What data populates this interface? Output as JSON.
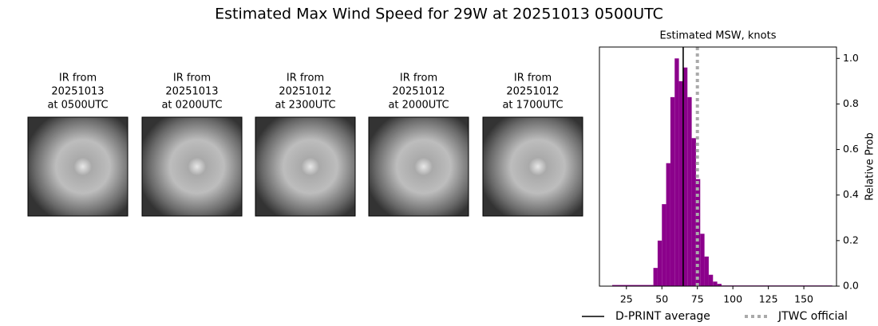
{
  "title": "Estimated Max Wind Speed for 29W at 20251013 0500UTC",
  "images": [
    {
      "lines": [
        "IR from",
        "20251013",
        "at 0500UTC"
      ]
    },
    {
      "lines": [
        "IR from",
        "20251013",
        "at 0200UTC"
      ]
    },
    {
      "lines": [
        "IR from",
        "20251012",
        "at 2300UTC"
      ]
    },
    {
      "lines": [
        "IR from",
        "20251012",
        "at 2000UTC"
      ]
    },
    {
      "lines": [
        "IR from",
        "20251012",
        "at 1700UTC"
      ]
    }
  ],
  "chart_data": {
    "type": "histogram",
    "title": "Estimated MSW, knots",
    "y_label": "Relative Prob",
    "color": "#8b008b",
    "bins": [
      15,
      44,
      47,
      50,
      53,
      56,
      59,
      62,
      65,
      68,
      71,
      74,
      77,
      80,
      83,
      86,
      89,
      92,
      170
    ],
    "counts": [
      0.005,
      0.08,
      0.2,
      0.36,
      0.54,
      0.83,
      1.0,
      0.9,
      0.96,
      0.83,
      0.65,
      0.47,
      0.23,
      0.13,
      0.05,
      0.02,
      0.01,
      0.003
    ],
    "xlim": [
      6,
      173
    ],
    "ylim": [
      0,
      1.05
    ],
    "xticks": [
      25,
      50,
      75,
      100,
      125,
      150
    ],
    "yticks": [
      {
        "value": 0,
        "label": "0.0"
      },
      0.2,
      0.4,
      0.6,
      0.8,
      {
        "value": 1,
        "label": "1.0"
      }
    ],
    "lines": [
      {
        "name": "D-PRINT average",
        "value": 65,
        "color": "#000000",
        "style": "solid"
      },
      {
        "name": "JTWC official",
        "value": 75,
        "color": "#aaaaaa",
        "style": "dotted"
      }
    ],
    "legend": "bottom"
  }
}
